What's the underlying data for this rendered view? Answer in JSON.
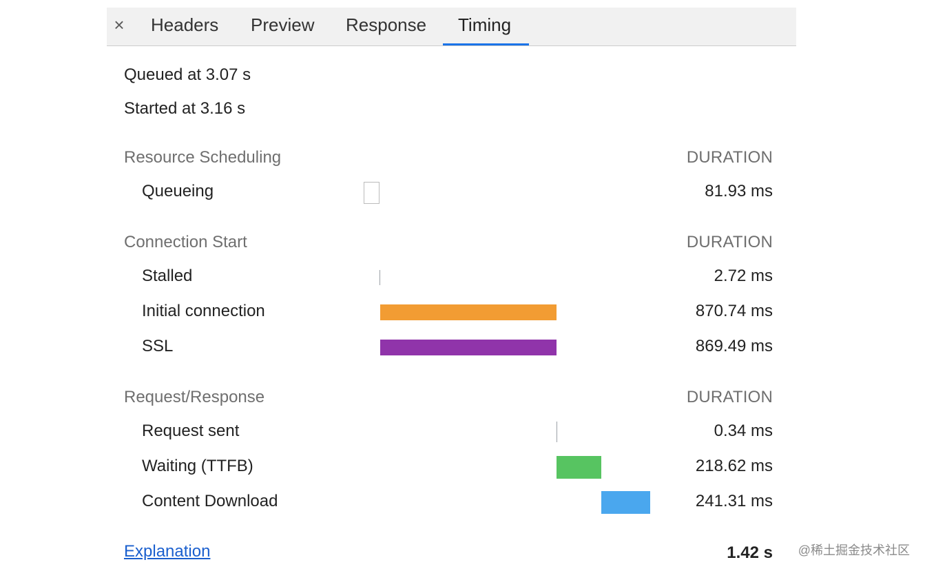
{
  "tabs": {
    "close_symbol": "×",
    "items": [
      "Headers",
      "Preview",
      "Response",
      "Timing"
    ],
    "active": "Timing"
  },
  "info": {
    "queued": "Queued at 3.07 s",
    "started": "Started at 3.16 s"
  },
  "sections": {
    "resource_scheduling": {
      "title": "Resource Scheduling",
      "duration_label": "DURATION",
      "rows": {
        "queueing": {
          "label": "Queueing",
          "value": "81.93 ms"
        }
      }
    },
    "connection_start": {
      "title": "Connection Start",
      "duration_label": "DURATION",
      "rows": {
        "stalled": {
          "label": "Stalled",
          "value": "2.72 ms"
        },
        "initial_connection": {
          "label": "Initial connection",
          "value": "870.74 ms",
          "color": "#f29c33"
        },
        "ssl": {
          "label": "SSL",
          "value": "869.49 ms",
          "color": "#9034aa"
        }
      }
    },
    "request_response": {
      "title": "Request/Response",
      "duration_label": "DURATION",
      "rows": {
        "request_sent": {
          "label": "Request sent",
          "value": "0.34 ms"
        },
        "waiting_ttfb": {
          "label": "Waiting (TTFB)",
          "value": "218.62 ms",
          "color": "#57c461"
        },
        "content_download": {
          "label": "Content Download",
          "value": "241.31 ms",
          "color": "#4aa7ee"
        }
      }
    }
  },
  "footer": {
    "explanation": "Explanation",
    "total": "1.42 s"
  },
  "watermark": "@稀土掘金技术社区"
}
